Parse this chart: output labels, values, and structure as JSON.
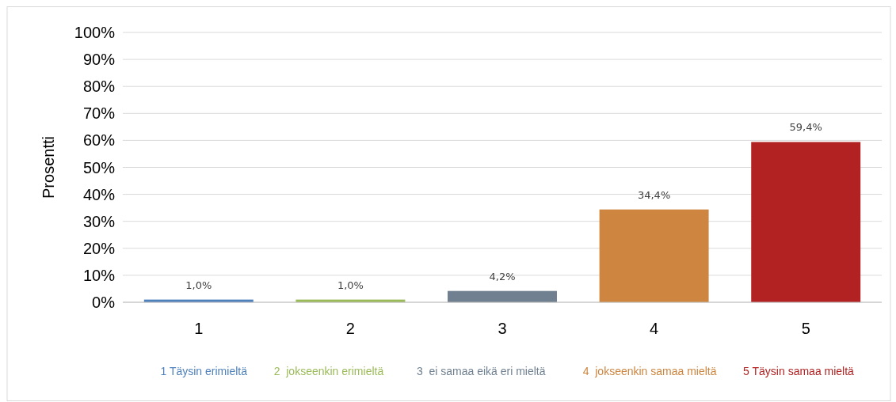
{
  "chart_data": {
    "type": "bar",
    "ylabel": "Prosentti",
    "categories": [
      "1",
      "2",
      "3",
      "4",
      "5"
    ],
    "series": [
      {
        "name": "1 Täysin erimieltä",
        "color": "#4f81bd",
        "values": [
          1.0,
          null,
          null,
          null,
          null
        ],
        "value_labels": [
          "1,0%",
          null,
          null,
          null,
          null
        ]
      },
      {
        "name": "2  jokseenkin erimieltä",
        "color": "#9bbb59",
        "values": [
          null,
          1.0,
          null,
          null,
          null
        ],
        "value_labels": [
          null,
          "1,0%",
          null,
          null,
          null
        ]
      },
      {
        "name": "3  ei samaa eikä eri mieltä",
        "color": "#708090",
        "values": [
          null,
          null,
          4.2,
          null,
          null
        ],
        "value_labels": [
          null,
          null,
          "4,2%",
          null,
          null
        ]
      },
      {
        "name": "4  jokseenkin samaa mieltä",
        "color": "#cd853f",
        "values": [
          null,
          null,
          null,
          34.4,
          null
        ],
        "value_labels": [
          null,
          null,
          null,
          "34,4%",
          null
        ]
      },
      {
        "name": "5 Täysin samaa mieltä",
        "color": "#b22222",
        "values": [
          null,
          null,
          null,
          null,
          59.4
        ],
        "value_labels": [
          null,
          null,
          null,
          null,
          "59,4%"
        ]
      }
    ],
    "ylim": [
      0,
      100
    ],
    "yticks": [
      {
        "value": 0,
        "label": "0%"
      },
      {
        "value": 10,
        "label": "10%"
      },
      {
        "value": 20,
        "label": "20%"
      },
      {
        "value": 30,
        "label": "30%"
      },
      {
        "value": 40,
        "label": "40%"
      },
      {
        "value": 50,
        "label": "50%"
      },
      {
        "value": 60,
        "label": "60%"
      },
      {
        "value": 70,
        "label": "70%"
      },
      {
        "value": 80,
        "label": "80%"
      },
      {
        "value": 90,
        "label": "90%"
      },
      {
        "value": 100,
        "label": "100%"
      }
    ],
    "grid": "y",
    "legend": "bottom"
  }
}
